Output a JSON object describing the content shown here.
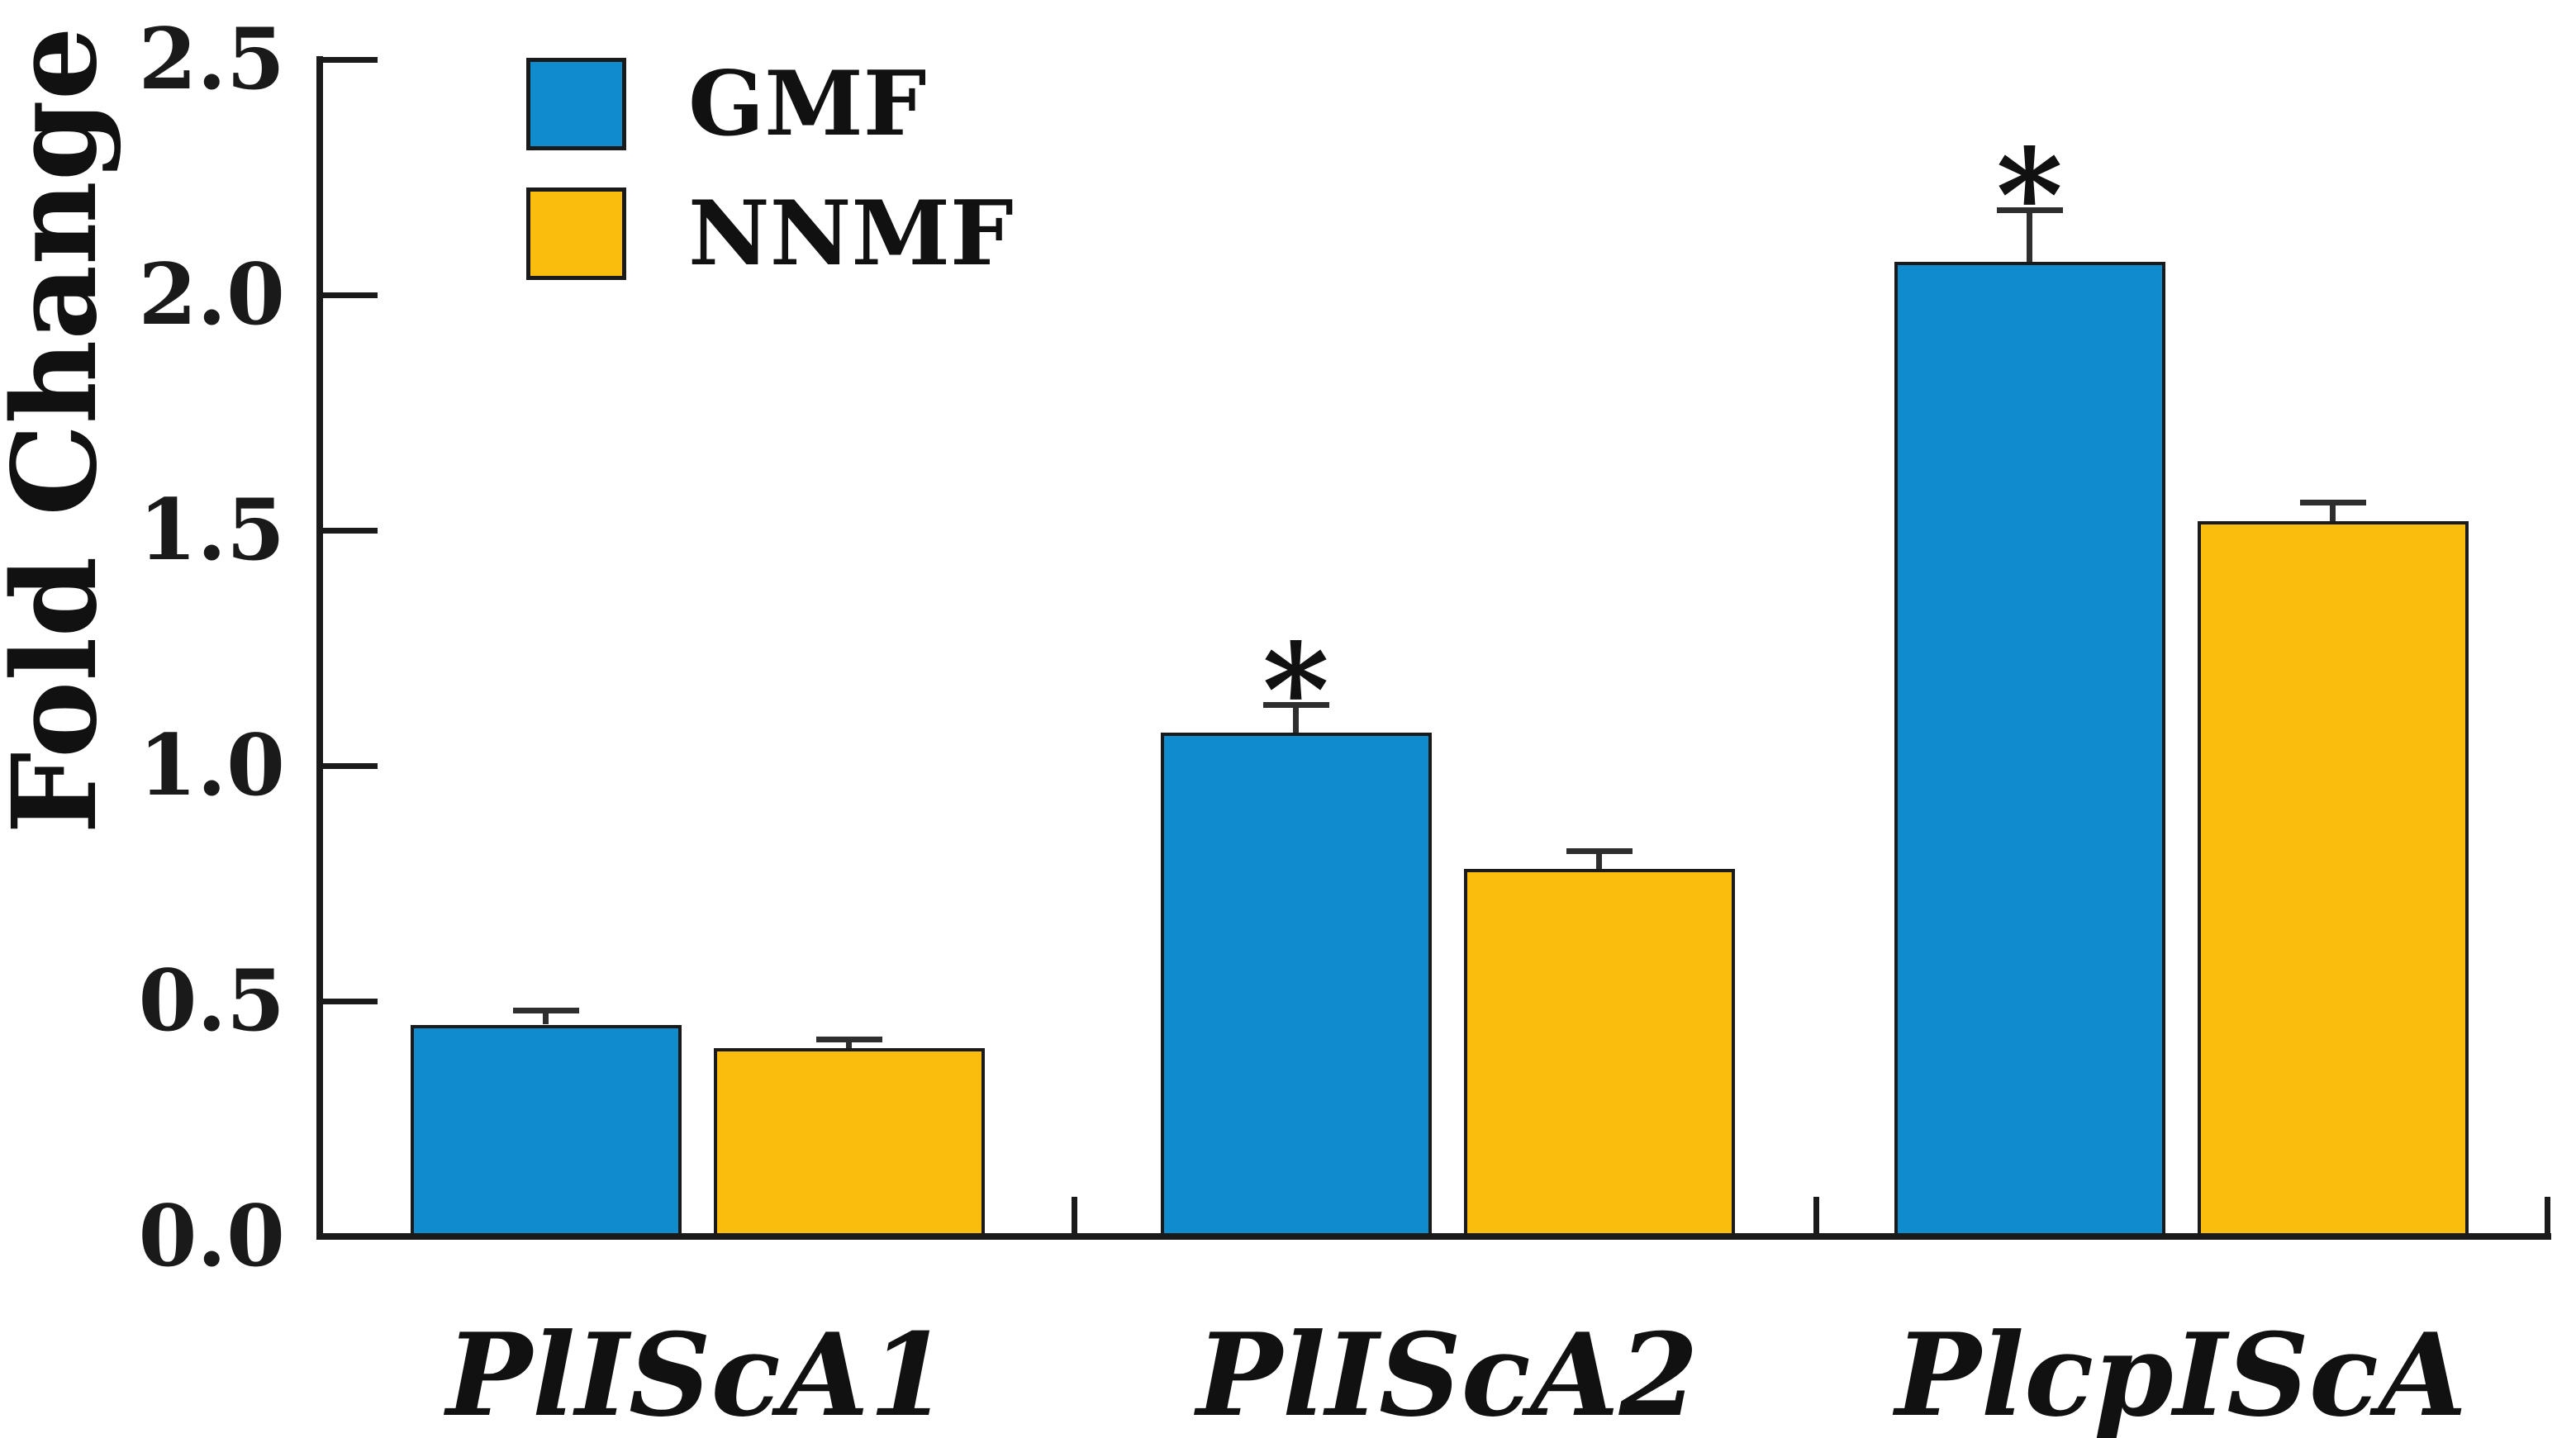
{
  "figure": {
    "background": "#FFFFFF"
  },
  "chart_data": {
    "type": "bar",
    "title": "",
    "ylabel": "Fold Change",
    "xlabel": "",
    "ylim": [
      0,
      2.5
    ],
    "yticks": [
      0.0,
      0.5,
      1.0,
      1.5,
      2.0,
      2.5
    ],
    "ytick_labels": [
      "0.0",
      "0.5",
      "1.0",
      "1.5",
      "2.0",
      "2.5"
    ],
    "grid": false,
    "legend": {
      "position": "upper-left-inside",
      "entries": [
        "GMF",
        "NNMF"
      ]
    },
    "categories": [
      "PlIScA1",
      "PlIScA2",
      "PlcpIScA"
    ],
    "series": [
      {
        "name": "GMF",
        "color": "#0E8CCE",
        "values": [
          0.45,
          1.07,
          2.07
        ],
        "errors_plus": [
          0.03,
          0.06,
          0.11
        ],
        "significance": [
          "",
          "*",
          "*"
        ]
      },
      {
        "name": "NNMF",
        "color": "#FABC0D",
        "values": [
          0.4,
          0.78,
          1.52
        ],
        "errors_plus": [
          0.02,
          0.04,
          0.04
        ],
        "significance": [
          "",
          "",
          ""
        ]
      }
    ],
    "axis_color": "#1A1A1A",
    "error_bar_color": "#2E2E2E",
    "bar_border_color": "#1A1A1A",
    "significance_marker_color": "#111111"
  }
}
